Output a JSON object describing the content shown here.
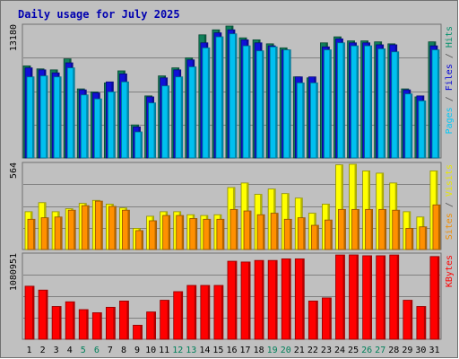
{
  "chart_data": {
    "type": "bar",
    "title": "Daily usage for July 2025",
    "categories": [
      "1",
      "2",
      "3",
      "4",
      "5",
      "6",
      "7",
      "8",
      "9",
      "10",
      "11",
      "12",
      "13",
      "14",
      "15",
      "16",
      "17",
      "18",
      "19",
      "20",
      "21",
      "22",
      "23",
      "24",
      "25",
      "26",
      "27",
      "28",
      "29",
      "30",
      "31"
    ],
    "weekend_days": [
      "5",
      "6",
      "12",
      "13",
      "19",
      "20",
      "26",
      "27"
    ],
    "panels": [
      {
        "max_label": "13180",
        "ylim": [
          0,
          13180
        ],
        "label_parts": [
          "Pages",
          " / ",
          "Files",
          " / ",
          "Hits"
        ],
        "label_colors": [
          "#00c8f8",
          "#505050",
          "#0000d8",
          "#505050",
          "#00906a"
        ],
        "series": [
          {
            "name": "Hits",
            "color": "#10805a",
            "values": [
              9200,
              8900,
              8800,
              9900,
              6900,
              6600,
              7500,
              8700,
              3300,
              6200,
              8200,
              9000,
              10000,
              12300,
              12800,
              13180,
              12000,
              11800,
              11400,
              11000,
              8100,
              8000,
              11500,
              12100,
              11700,
              11700,
              11600,
              11400,
              6900,
              6100,
              11600
            ]
          },
          {
            "name": "Files",
            "color": "#1010d8",
            "values": [
              9000,
              8800,
              8500,
              9500,
              6800,
              6500,
              7600,
              8400,
              3100,
              6100,
              8000,
              8800,
              9800,
              11500,
              12500,
              12800,
              11800,
              11500,
              11200,
              10800,
              8100,
              8100,
              11100,
              11900,
              11500,
              11500,
              11300,
              11300,
              6800,
              6200,
              11200
            ]
          },
          {
            "name": "Pages",
            "color": "#00c0f0",
            "values": [
              8100,
              8200,
              8100,
              9000,
              6300,
              5900,
              6600,
              7600,
              2600,
              5500,
              7200,
              8100,
              9100,
              11000,
              12100,
              12400,
              11200,
              10700,
              11100,
              10800,
              7500,
              7500,
              10800,
              11500,
              11200,
              11200,
              10900,
              10600,
              6400,
              5700,
              10800
            ]
          }
        ]
      },
      {
        "max_label": "564",
        "ylim": [
          0,
          564
        ],
        "label_parts": [
          "Sites",
          " / ",
          "Visits"
        ],
        "label_colors": [
          "#f08c00",
          "#505050",
          "#e8e800"
        ],
        "series": [
          {
            "name": "Visits",
            "color": "#ffff00",
            "values": [
              250,
              310,
              250,
              270,
              305,
              325,
              300,
              275,
              140,
              220,
              250,
              250,
              230,
              225,
              230,
              410,
              440,
              365,
              400,
              370,
              340,
              240,
              300,
              560,
              564,
              520,
              505,
              440,
              250,
              215,
              520
            ]
          },
          {
            "name": "Sites",
            "color": "#ff9000",
            "values": [
              200,
              210,
              215,
              260,
              290,
              320,
              285,
              260,
              125,
              190,
              225,
              225,
              205,
              200,
              200,
              265,
              255,
              230,
              240,
              200,
              210,
              160,
              195,
              265,
              265,
              265,
              265,
              260,
              140,
              150,
              295
            ]
          }
        ]
      },
      {
        "max_label": "1080951",
        "ylim": [
          0,
          1080951
        ],
        "label_parts": [
          "KBytes"
        ],
        "label_colors": [
          "#ff0000"
        ],
        "series": [
          {
            "name": "KBytes",
            "color": "#ff0000",
            "values": [
              680000,
              630000,
              420000,
              480000,
              380000,
              340000,
              410000,
              490000,
              180000,
              350000,
              500000,
              610000,
              690000,
              690000,
              690000,
              1000000,
              990000,
              1010000,
              1010000,
              1030000,
              1030000,
              490000,
              530000,
              1080000,
              1080951,
              1070000,
              1070000,
              1080000,
              500000,
              420000,
              1060000
            ]
          }
        ]
      }
    ],
    "colors": {
      "background": "#c0c0c0",
      "grid": "#808080",
      "title": "#0000b0",
      "day_label": "#000000",
      "weekend_day_label": "#00805a",
      "border": "#707070"
    }
  }
}
